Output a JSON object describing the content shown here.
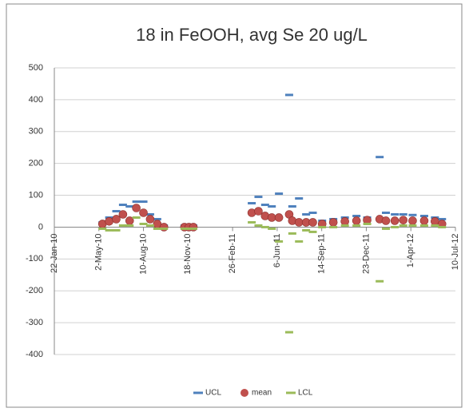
{
  "chart_data": {
    "type": "control",
    "title": "18 in FeOOH, avg Se 20 ug/L",
    "x": [
      "2010-05-10",
      "2010-05-25",
      "2010-06-10",
      "2010-06-25",
      "2010-07-10",
      "2010-07-25",
      "2010-08-10",
      "2010-08-25",
      "2010-09-10",
      "2010-09-25",
      "2010-11-10",
      "2010-11-20",
      "2010-11-30",
      "2011-04-10",
      "2011-04-25",
      "2011-05-10",
      "2011-05-25",
      "2011-06-10",
      "2011-07-03",
      "2011-07-10",
      "2011-07-25",
      "2011-08-10",
      "2011-08-25",
      "2011-09-15",
      "2011-10-10",
      "2011-11-05",
      "2011-12-01",
      "2011-12-25",
      "2012-01-22",
      "2012-02-05",
      "2012-02-25",
      "2012-03-15",
      "2012-04-05",
      "2012-05-01",
      "2012-05-25",
      "2012-06-10"
    ],
    "series": [
      {
        "name": "UCL",
        "color": "#4f81bd",
        "marker": "dash",
        "values": [
          15,
          30,
          50,
          70,
          65,
          80,
          80,
          40,
          25,
          5,
          5,
          5,
          5,
          75,
          95,
          70,
          65,
          105,
          415,
          65,
          90,
          40,
          45,
          20,
          25,
          30,
          35,
          30,
          220,
          45,
          40,
          40,
          38,
          35,
          30,
          25
        ]
      },
      {
        "name": "mean",
        "color": "#c0504d",
        "marker": "circle",
        "values": [
          10,
          18,
          25,
          40,
          20,
          60,
          45,
          25,
          10,
          0,
          0,
          0,
          0,
          45,
          50,
          35,
          30,
          30,
          40,
          20,
          15,
          15,
          15,
          10,
          15,
          18,
          20,
          22,
          25,
          20,
          20,
          22,
          20,
          20,
          18,
          10
        ]
      },
      {
        "name": "LCL",
        "color": "#9bbb59",
        "marker": "dash",
        "values": [
          -5,
          -10,
          -10,
          5,
          5,
          30,
          10,
          5,
          -5,
          -5,
          -5,
          -5,
          -5,
          15,
          5,
          0,
          -5,
          -45,
          -330,
          -20,
          -45,
          -10,
          -15,
          0,
          0,
          5,
          5,
          10,
          -170,
          -5,
          0,
          5,
          5,
          5,
          5,
          0
        ]
      }
    ],
    "xlim": [
      "2010-01-22",
      "2012-07-10"
    ],
    "xticks": [
      {
        "value": "2010-01-22",
        "label": "22-Jan-10"
      },
      {
        "value": "2010-05-02",
        "label": "2-May-10"
      },
      {
        "value": "2010-08-10",
        "label": "10-Aug-10"
      },
      {
        "value": "2010-11-18",
        "label": "18-Nov-10"
      },
      {
        "value": "2011-02-26",
        "label": "26-Feb-11"
      },
      {
        "value": "2011-06-06",
        "label": "6-Jun-11"
      },
      {
        "value": "2011-09-14",
        "label": "14-Sep-11"
      },
      {
        "value": "2011-12-23",
        "label": "23-Dec-11"
      },
      {
        "value": "2012-04-01",
        "label": "1-Apr-12"
      },
      {
        "value": "2012-07-10",
        "label": "10-Jul-12"
      }
    ],
    "ylim": [
      -400,
      500
    ],
    "yticks": [
      -400,
      -300,
      -200,
      -100,
      0,
      100,
      200,
      300,
      400,
      500
    ],
    "grid": true,
    "legend": "bottom"
  }
}
